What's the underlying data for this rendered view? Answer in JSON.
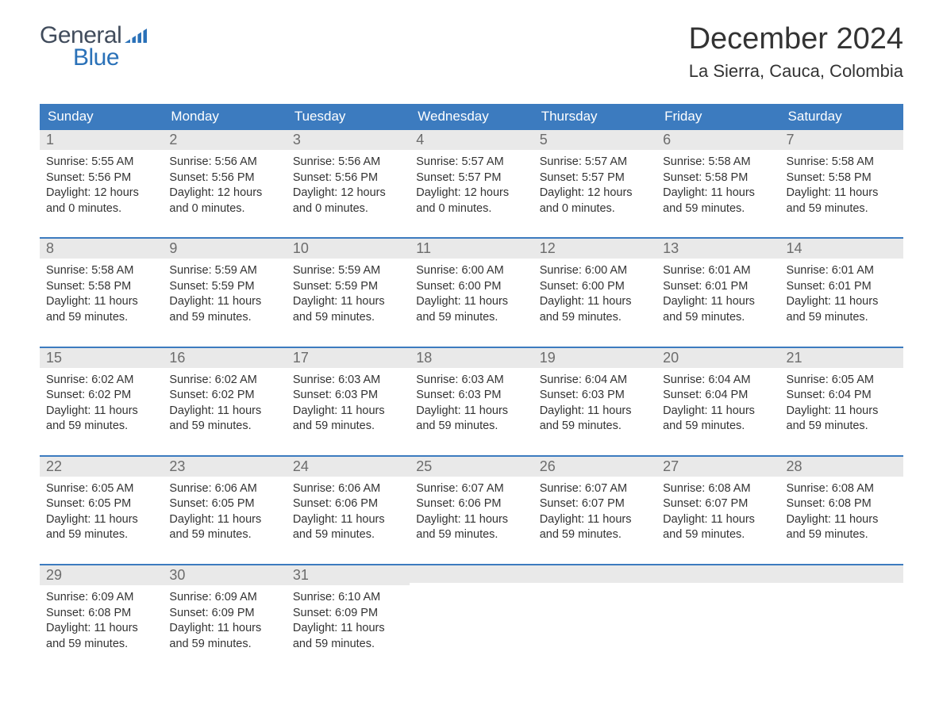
{
  "logo": {
    "general": "General",
    "blue": "Blue",
    "general_color": "#414c5c",
    "blue_color": "#2a71b8",
    "flag_color": "#2a71b8"
  },
  "header": {
    "month_title": "December 2024",
    "location": "La Sierra, Cauca, Colombia"
  },
  "colors": {
    "header_bg": "#3c7bbf",
    "header_text": "#ffffff",
    "daynum_bg": "#e9e9e9",
    "daynum_text": "#6c6c6c",
    "week_divider": "#3c7bbf",
    "body_text": "#333333",
    "page_bg": "#ffffff"
  },
  "weekdays": [
    "Sunday",
    "Monday",
    "Tuesday",
    "Wednesday",
    "Thursday",
    "Friday",
    "Saturday"
  ],
  "weeks": [
    [
      {
        "d": "1",
        "sr": "Sunrise: 5:55 AM",
        "ss": "Sunset: 5:56 PM",
        "d1": "Daylight: 12 hours",
        "d2": "and 0 minutes."
      },
      {
        "d": "2",
        "sr": "Sunrise: 5:56 AM",
        "ss": "Sunset: 5:56 PM",
        "d1": "Daylight: 12 hours",
        "d2": "and 0 minutes."
      },
      {
        "d": "3",
        "sr": "Sunrise: 5:56 AM",
        "ss": "Sunset: 5:56 PM",
        "d1": "Daylight: 12 hours",
        "d2": "and 0 minutes."
      },
      {
        "d": "4",
        "sr": "Sunrise: 5:57 AM",
        "ss": "Sunset: 5:57 PM",
        "d1": "Daylight: 12 hours",
        "d2": "and 0 minutes."
      },
      {
        "d": "5",
        "sr": "Sunrise: 5:57 AM",
        "ss": "Sunset: 5:57 PM",
        "d1": "Daylight: 12 hours",
        "d2": "and 0 minutes."
      },
      {
        "d": "6",
        "sr": "Sunrise: 5:58 AM",
        "ss": "Sunset: 5:58 PM",
        "d1": "Daylight: 11 hours",
        "d2": "and 59 minutes."
      },
      {
        "d": "7",
        "sr": "Sunrise: 5:58 AM",
        "ss": "Sunset: 5:58 PM",
        "d1": "Daylight: 11 hours",
        "d2": "and 59 minutes."
      }
    ],
    [
      {
        "d": "8",
        "sr": "Sunrise: 5:58 AM",
        "ss": "Sunset: 5:58 PM",
        "d1": "Daylight: 11 hours",
        "d2": "and 59 minutes."
      },
      {
        "d": "9",
        "sr": "Sunrise: 5:59 AM",
        "ss": "Sunset: 5:59 PM",
        "d1": "Daylight: 11 hours",
        "d2": "and 59 minutes."
      },
      {
        "d": "10",
        "sr": "Sunrise: 5:59 AM",
        "ss": "Sunset: 5:59 PM",
        "d1": "Daylight: 11 hours",
        "d2": "and 59 minutes."
      },
      {
        "d": "11",
        "sr": "Sunrise: 6:00 AM",
        "ss": "Sunset: 6:00 PM",
        "d1": "Daylight: 11 hours",
        "d2": "and 59 minutes."
      },
      {
        "d": "12",
        "sr": "Sunrise: 6:00 AM",
        "ss": "Sunset: 6:00 PM",
        "d1": "Daylight: 11 hours",
        "d2": "and 59 minutes."
      },
      {
        "d": "13",
        "sr": "Sunrise: 6:01 AM",
        "ss": "Sunset: 6:01 PM",
        "d1": "Daylight: 11 hours",
        "d2": "and 59 minutes."
      },
      {
        "d": "14",
        "sr": "Sunrise: 6:01 AM",
        "ss": "Sunset: 6:01 PM",
        "d1": "Daylight: 11 hours",
        "d2": "and 59 minutes."
      }
    ],
    [
      {
        "d": "15",
        "sr": "Sunrise: 6:02 AM",
        "ss": "Sunset: 6:02 PM",
        "d1": "Daylight: 11 hours",
        "d2": "and 59 minutes."
      },
      {
        "d": "16",
        "sr": "Sunrise: 6:02 AM",
        "ss": "Sunset: 6:02 PM",
        "d1": "Daylight: 11 hours",
        "d2": "and 59 minutes."
      },
      {
        "d": "17",
        "sr": "Sunrise: 6:03 AM",
        "ss": "Sunset: 6:03 PM",
        "d1": "Daylight: 11 hours",
        "d2": "and 59 minutes."
      },
      {
        "d": "18",
        "sr": "Sunrise: 6:03 AM",
        "ss": "Sunset: 6:03 PM",
        "d1": "Daylight: 11 hours",
        "d2": "and 59 minutes."
      },
      {
        "d": "19",
        "sr": "Sunrise: 6:04 AM",
        "ss": "Sunset: 6:03 PM",
        "d1": "Daylight: 11 hours",
        "d2": "and 59 minutes."
      },
      {
        "d": "20",
        "sr": "Sunrise: 6:04 AM",
        "ss": "Sunset: 6:04 PM",
        "d1": "Daylight: 11 hours",
        "d2": "and 59 minutes."
      },
      {
        "d": "21",
        "sr": "Sunrise: 6:05 AM",
        "ss": "Sunset: 6:04 PM",
        "d1": "Daylight: 11 hours",
        "d2": "and 59 minutes."
      }
    ],
    [
      {
        "d": "22",
        "sr": "Sunrise: 6:05 AM",
        "ss": "Sunset: 6:05 PM",
        "d1": "Daylight: 11 hours",
        "d2": "and 59 minutes."
      },
      {
        "d": "23",
        "sr": "Sunrise: 6:06 AM",
        "ss": "Sunset: 6:05 PM",
        "d1": "Daylight: 11 hours",
        "d2": "and 59 minutes."
      },
      {
        "d": "24",
        "sr": "Sunrise: 6:06 AM",
        "ss": "Sunset: 6:06 PM",
        "d1": "Daylight: 11 hours",
        "d2": "and 59 minutes."
      },
      {
        "d": "25",
        "sr": "Sunrise: 6:07 AM",
        "ss": "Sunset: 6:06 PM",
        "d1": "Daylight: 11 hours",
        "d2": "and 59 minutes."
      },
      {
        "d": "26",
        "sr": "Sunrise: 6:07 AM",
        "ss": "Sunset: 6:07 PM",
        "d1": "Daylight: 11 hours",
        "d2": "and 59 minutes."
      },
      {
        "d": "27",
        "sr": "Sunrise: 6:08 AM",
        "ss": "Sunset: 6:07 PM",
        "d1": "Daylight: 11 hours",
        "d2": "and 59 minutes."
      },
      {
        "d": "28",
        "sr": "Sunrise: 6:08 AM",
        "ss": "Sunset: 6:08 PM",
        "d1": "Daylight: 11 hours",
        "d2": "and 59 minutes."
      }
    ],
    [
      {
        "d": "29",
        "sr": "Sunrise: 6:09 AM",
        "ss": "Sunset: 6:08 PM",
        "d1": "Daylight: 11 hours",
        "d2": "and 59 minutes."
      },
      {
        "d": "30",
        "sr": "Sunrise: 6:09 AM",
        "ss": "Sunset: 6:09 PM",
        "d1": "Daylight: 11 hours",
        "d2": "and 59 minutes."
      },
      {
        "d": "31",
        "sr": "Sunrise: 6:10 AM",
        "ss": "Sunset: 6:09 PM",
        "d1": "Daylight: 11 hours",
        "d2": "and 59 minutes."
      },
      null,
      null,
      null,
      null
    ]
  ]
}
